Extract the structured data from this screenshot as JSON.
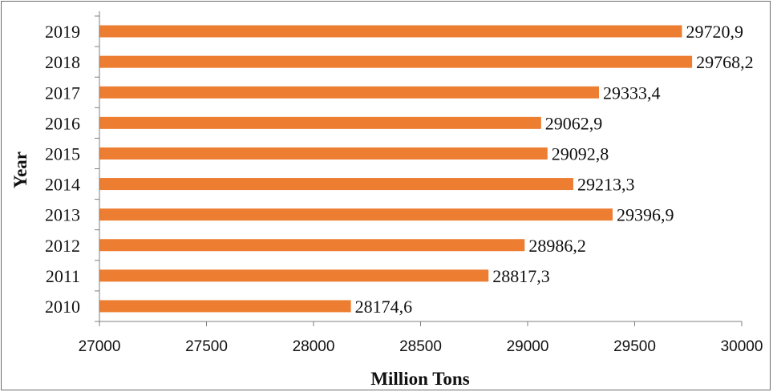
{
  "chart_data": {
    "type": "bar",
    "orientation": "horizontal",
    "categories": [
      "2019",
      "2018",
      "2017",
      "2016",
      "2015",
      "2014",
      "2013",
      "2012",
      "2011",
      "2010"
    ],
    "values": [
      29720.9,
      29768.2,
      29333.4,
      29062.9,
      29092.8,
      29213.3,
      29396.9,
      28986.2,
      28817.3,
      28174.6
    ],
    "data_labels": [
      "29720,9",
      "29768,2",
      "29333,4",
      "29062,9",
      "29092,8",
      "29213,3",
      "29396,9",
      "28986,2",
      "28817,3",
      "28174,6"
    ],
    "title": "",
    "xlabel": "Million Tons",
    "ylabel": "Year",
    "xlim": [
      27000,
      30000
    ],
    "xticks": [
      27000,
      27500,
      28000,
      28500,
      29000,
      29500,
      30000
    ],
    "xtick_labels": [
      "27000",
      "27500",
      "28000",
      "28500",
      "29000",
      "29500",
      "30000"
    ],
    "grid": false,
    "legend": "none",
    "bar_color": "#ED7D31"
  }
}
